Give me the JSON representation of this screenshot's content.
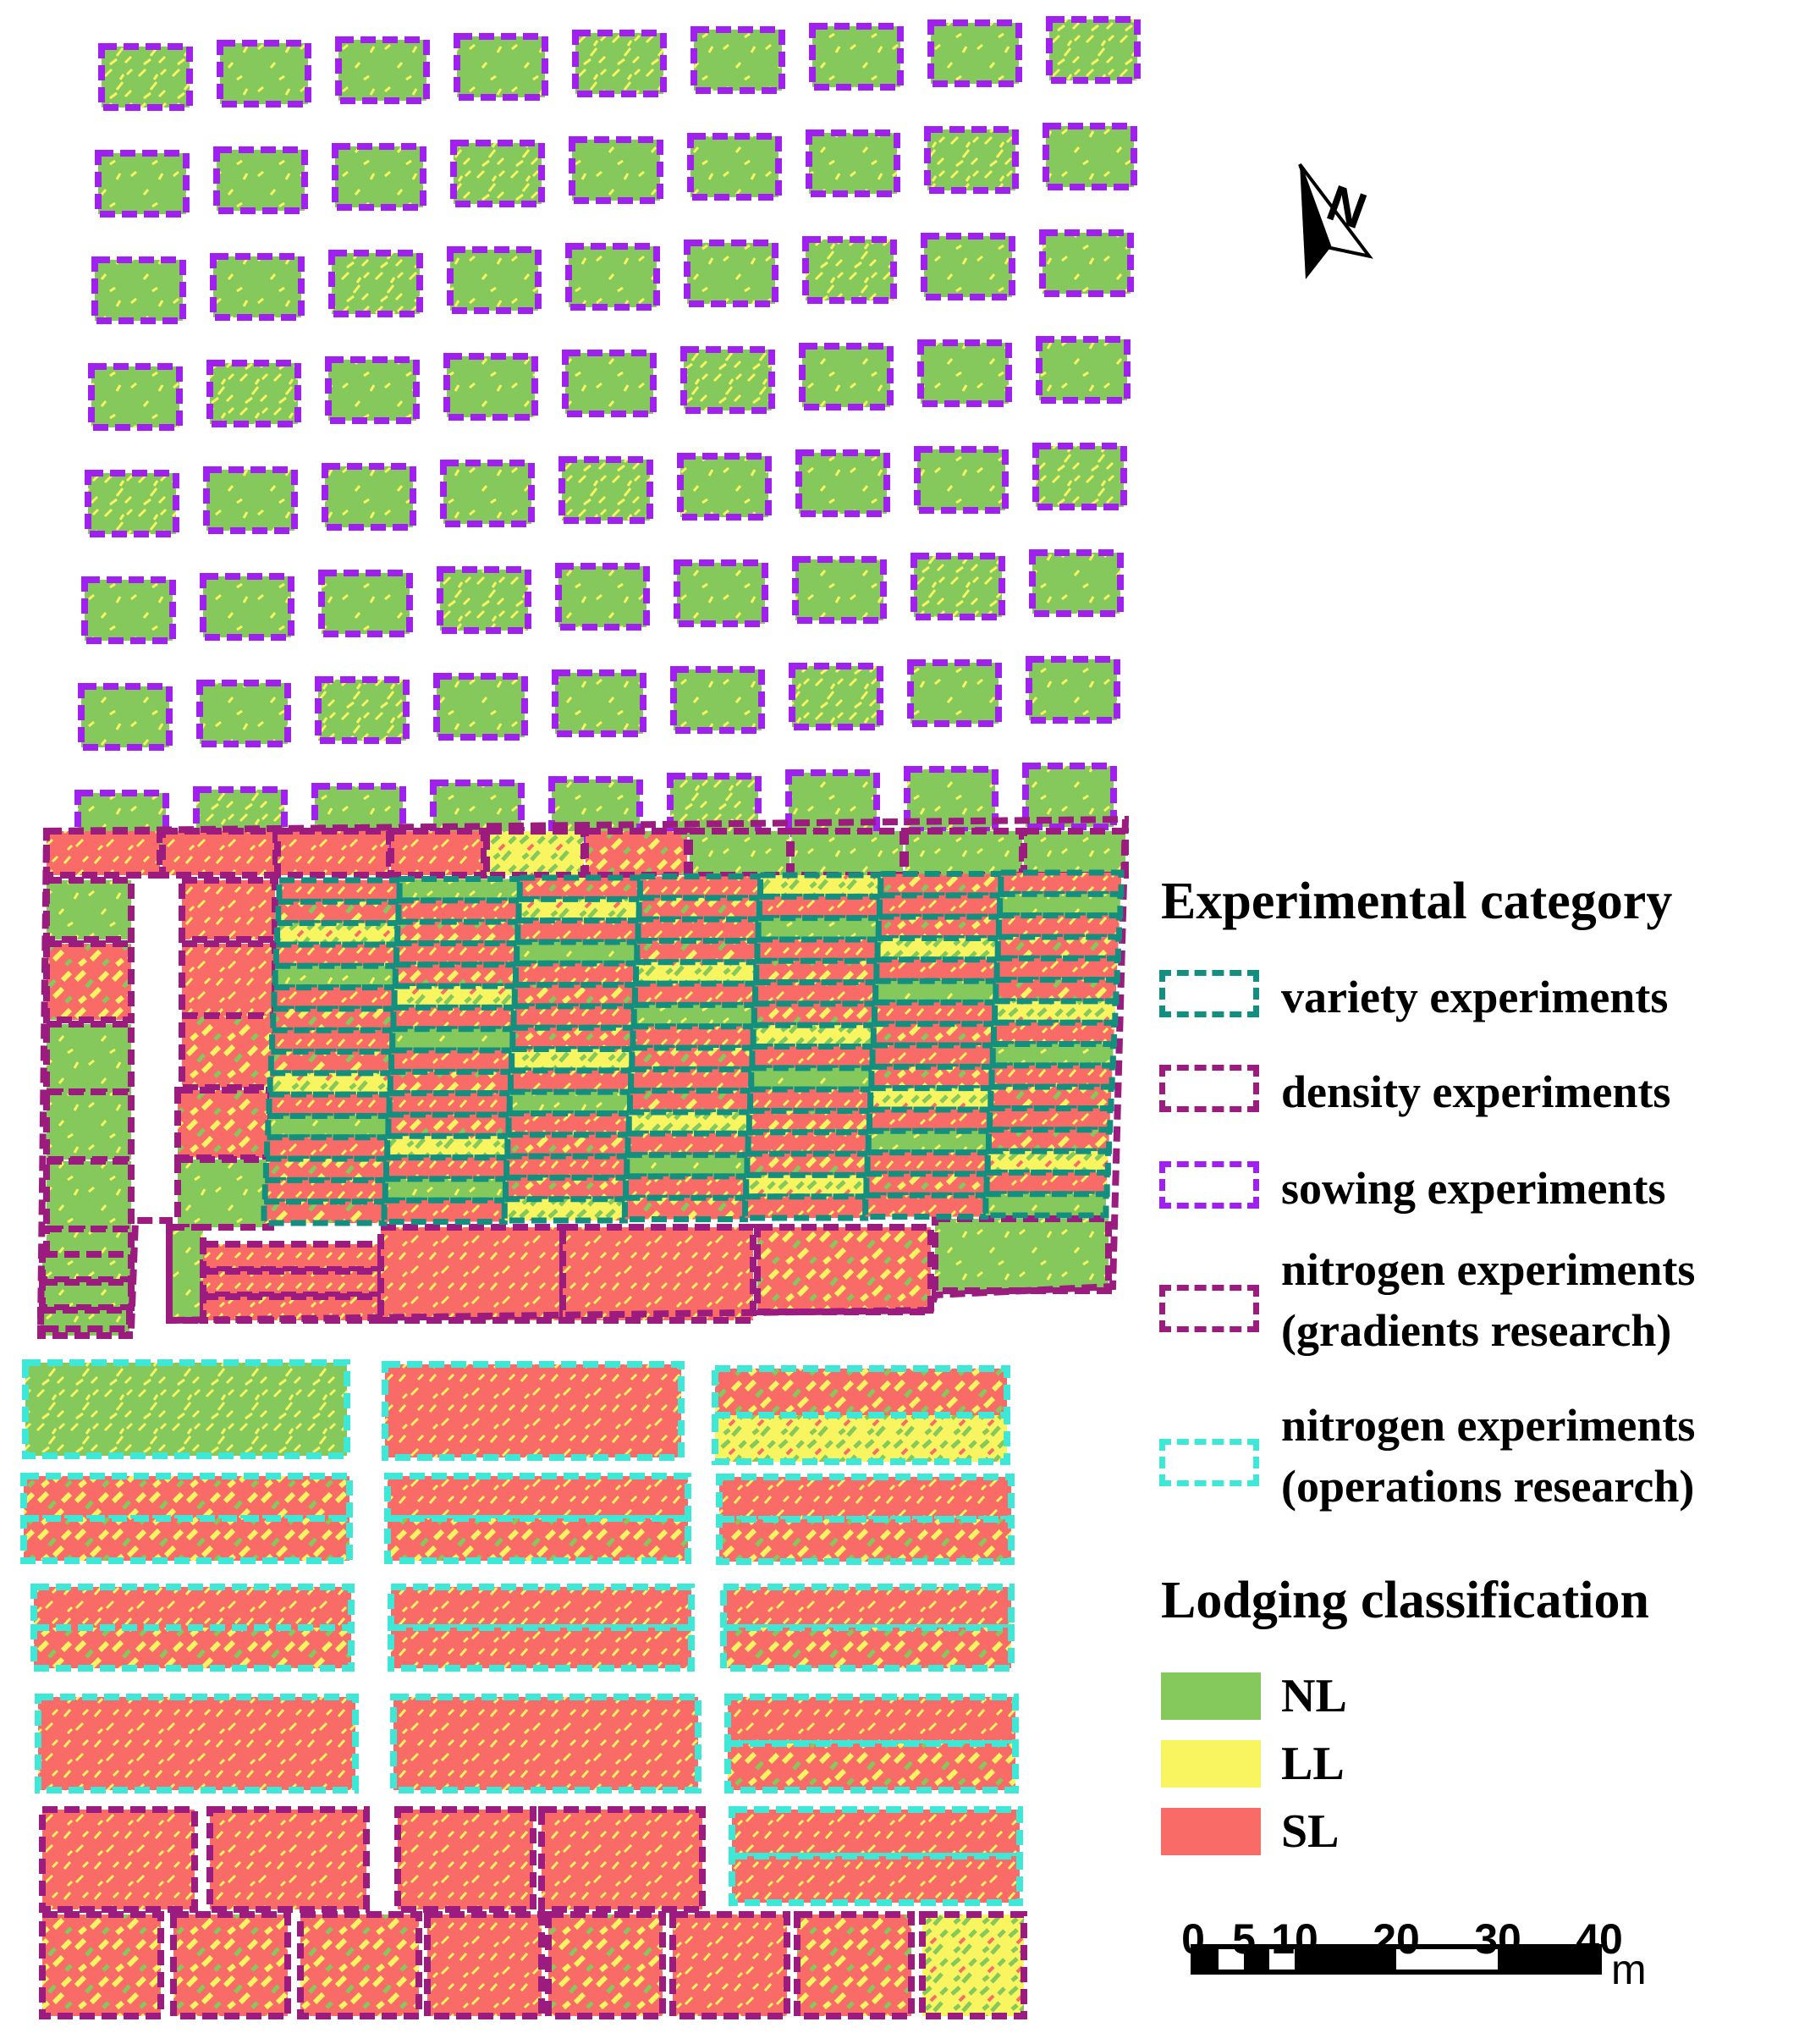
{
  "legend": {
    "category_title": "Experimental category",
    "categories": [
      {
        "label": "variety experiments",
        "color": "#138f7f"
      },
      {
        "label": "density experiments",
        "color": "#9b1b7e"
      },
      {
        "label": "sowing experiments",
        "color": "#a020ef"
      },
      {
        "label": "nitrogen experiments",
        "label2": "(gradients research)",
        "color": "#9b1b7e"
      },
      {
        "label": "nitrogen experiments",
        "label2": "(operations research)",
        "color": "#3ee8d6"
      }
    ],
    "lodging_title": "Lodging classification",
    "lodging": [
      {
        "label": "NL",
        "color": "#85c85c"
      },
      {
        "label": "LL",
        "color": "#f8f561"
      },
      {
        "label": "SL",
        "color": "#f86b66"
      }
    ]
  },
  "scale_bar": {
    "labels": [
      "0",
      "5",
      "10",
      "20",
      "30",
      "40"
    ],
    "unit": "m"
  },
  "north_arrow": {
    "label": "N",
    "icon": "north-arrow-icon"
  }
}
